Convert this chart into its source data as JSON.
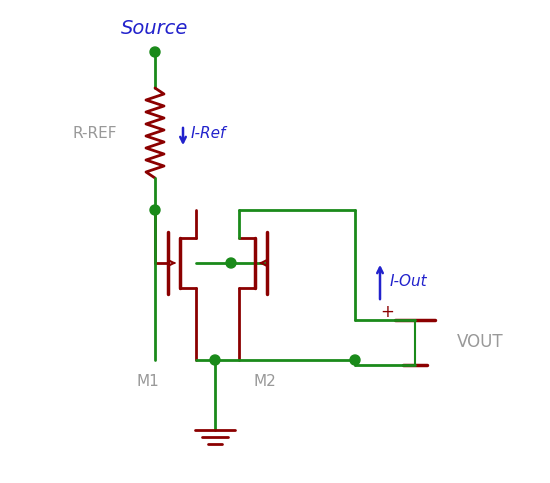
{
  "bg_color": "#ffffff",
  "wire_color": "#1a8a1a",
  "component_color": "#8b0000",
  "label_color": "#2222cc",
  "text_color": "#999999",
  "source_label": "Source",
  "rref_label": "R-REF",
  "iref_label": "I-Ref",
  "iout_label": "I-Out",
  "vout_label": "VOUT",
  "m1_label": "M1",
  "m2_label": "M2",
  "node_color": "#1a8a1a"
}
